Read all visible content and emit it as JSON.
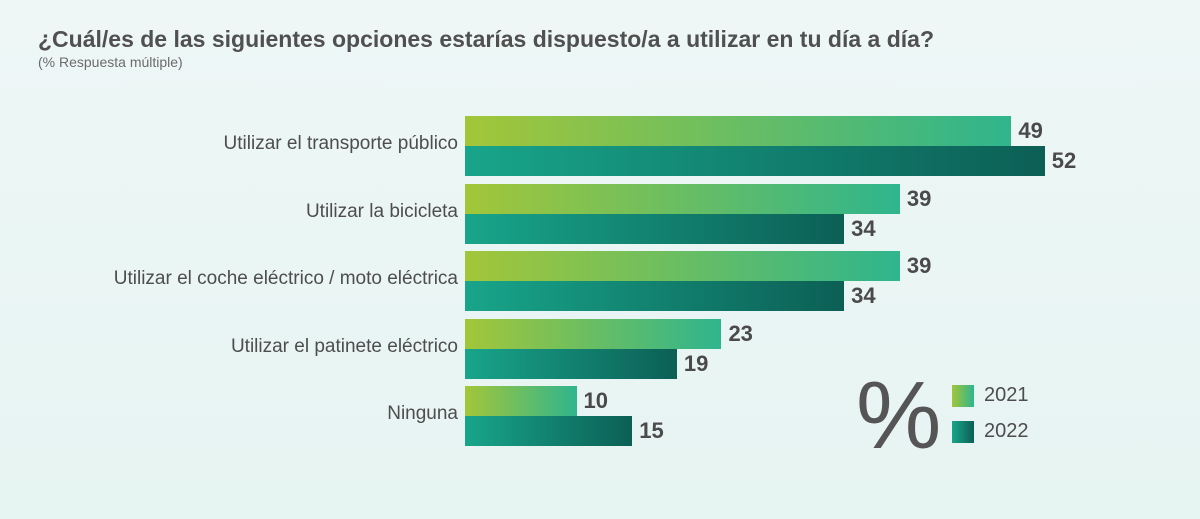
{
  "chart_data": {
    "type": "bar",
    "orientation": "horizontal",
    "title": "¿Cuál/es de las siguientes opciones estarías dispuesto/a a utilizar en tu día a día?",
    "subtitle": "(% Respuesta múltiple)",
    "categories": [
      "Utilizar el transporte público",
      "Utilizar la bicicleta",
      "Utilizar el coche eléctrico / moto eléctrica",
      "Utilizar el patinete eléctrico",
      "Ninguna"
    ],
    "series": [
      {
        "name": "2021",
        "values": [
          49,
          39,
          39,
          23,
          10
        ]
      },
      {
        "name": "2022",
        "values": [
          52,
          34,
          34,
          19,
          15
        ]
      }
    ],
    "xlim": [
      0,
      52
    ],
    "grid": false,
    "legend_position": "bottom-right",
    "legend_icon": "percent-icon",
    "legend_icon_text": "%",
    "colors": {
      "2021_start": "#a3c639",
      "2021_end": "#2fb58d",
      "2022_start": "#18a58a",
      "2022_end": "#0c5f55"
    }
  }
}
